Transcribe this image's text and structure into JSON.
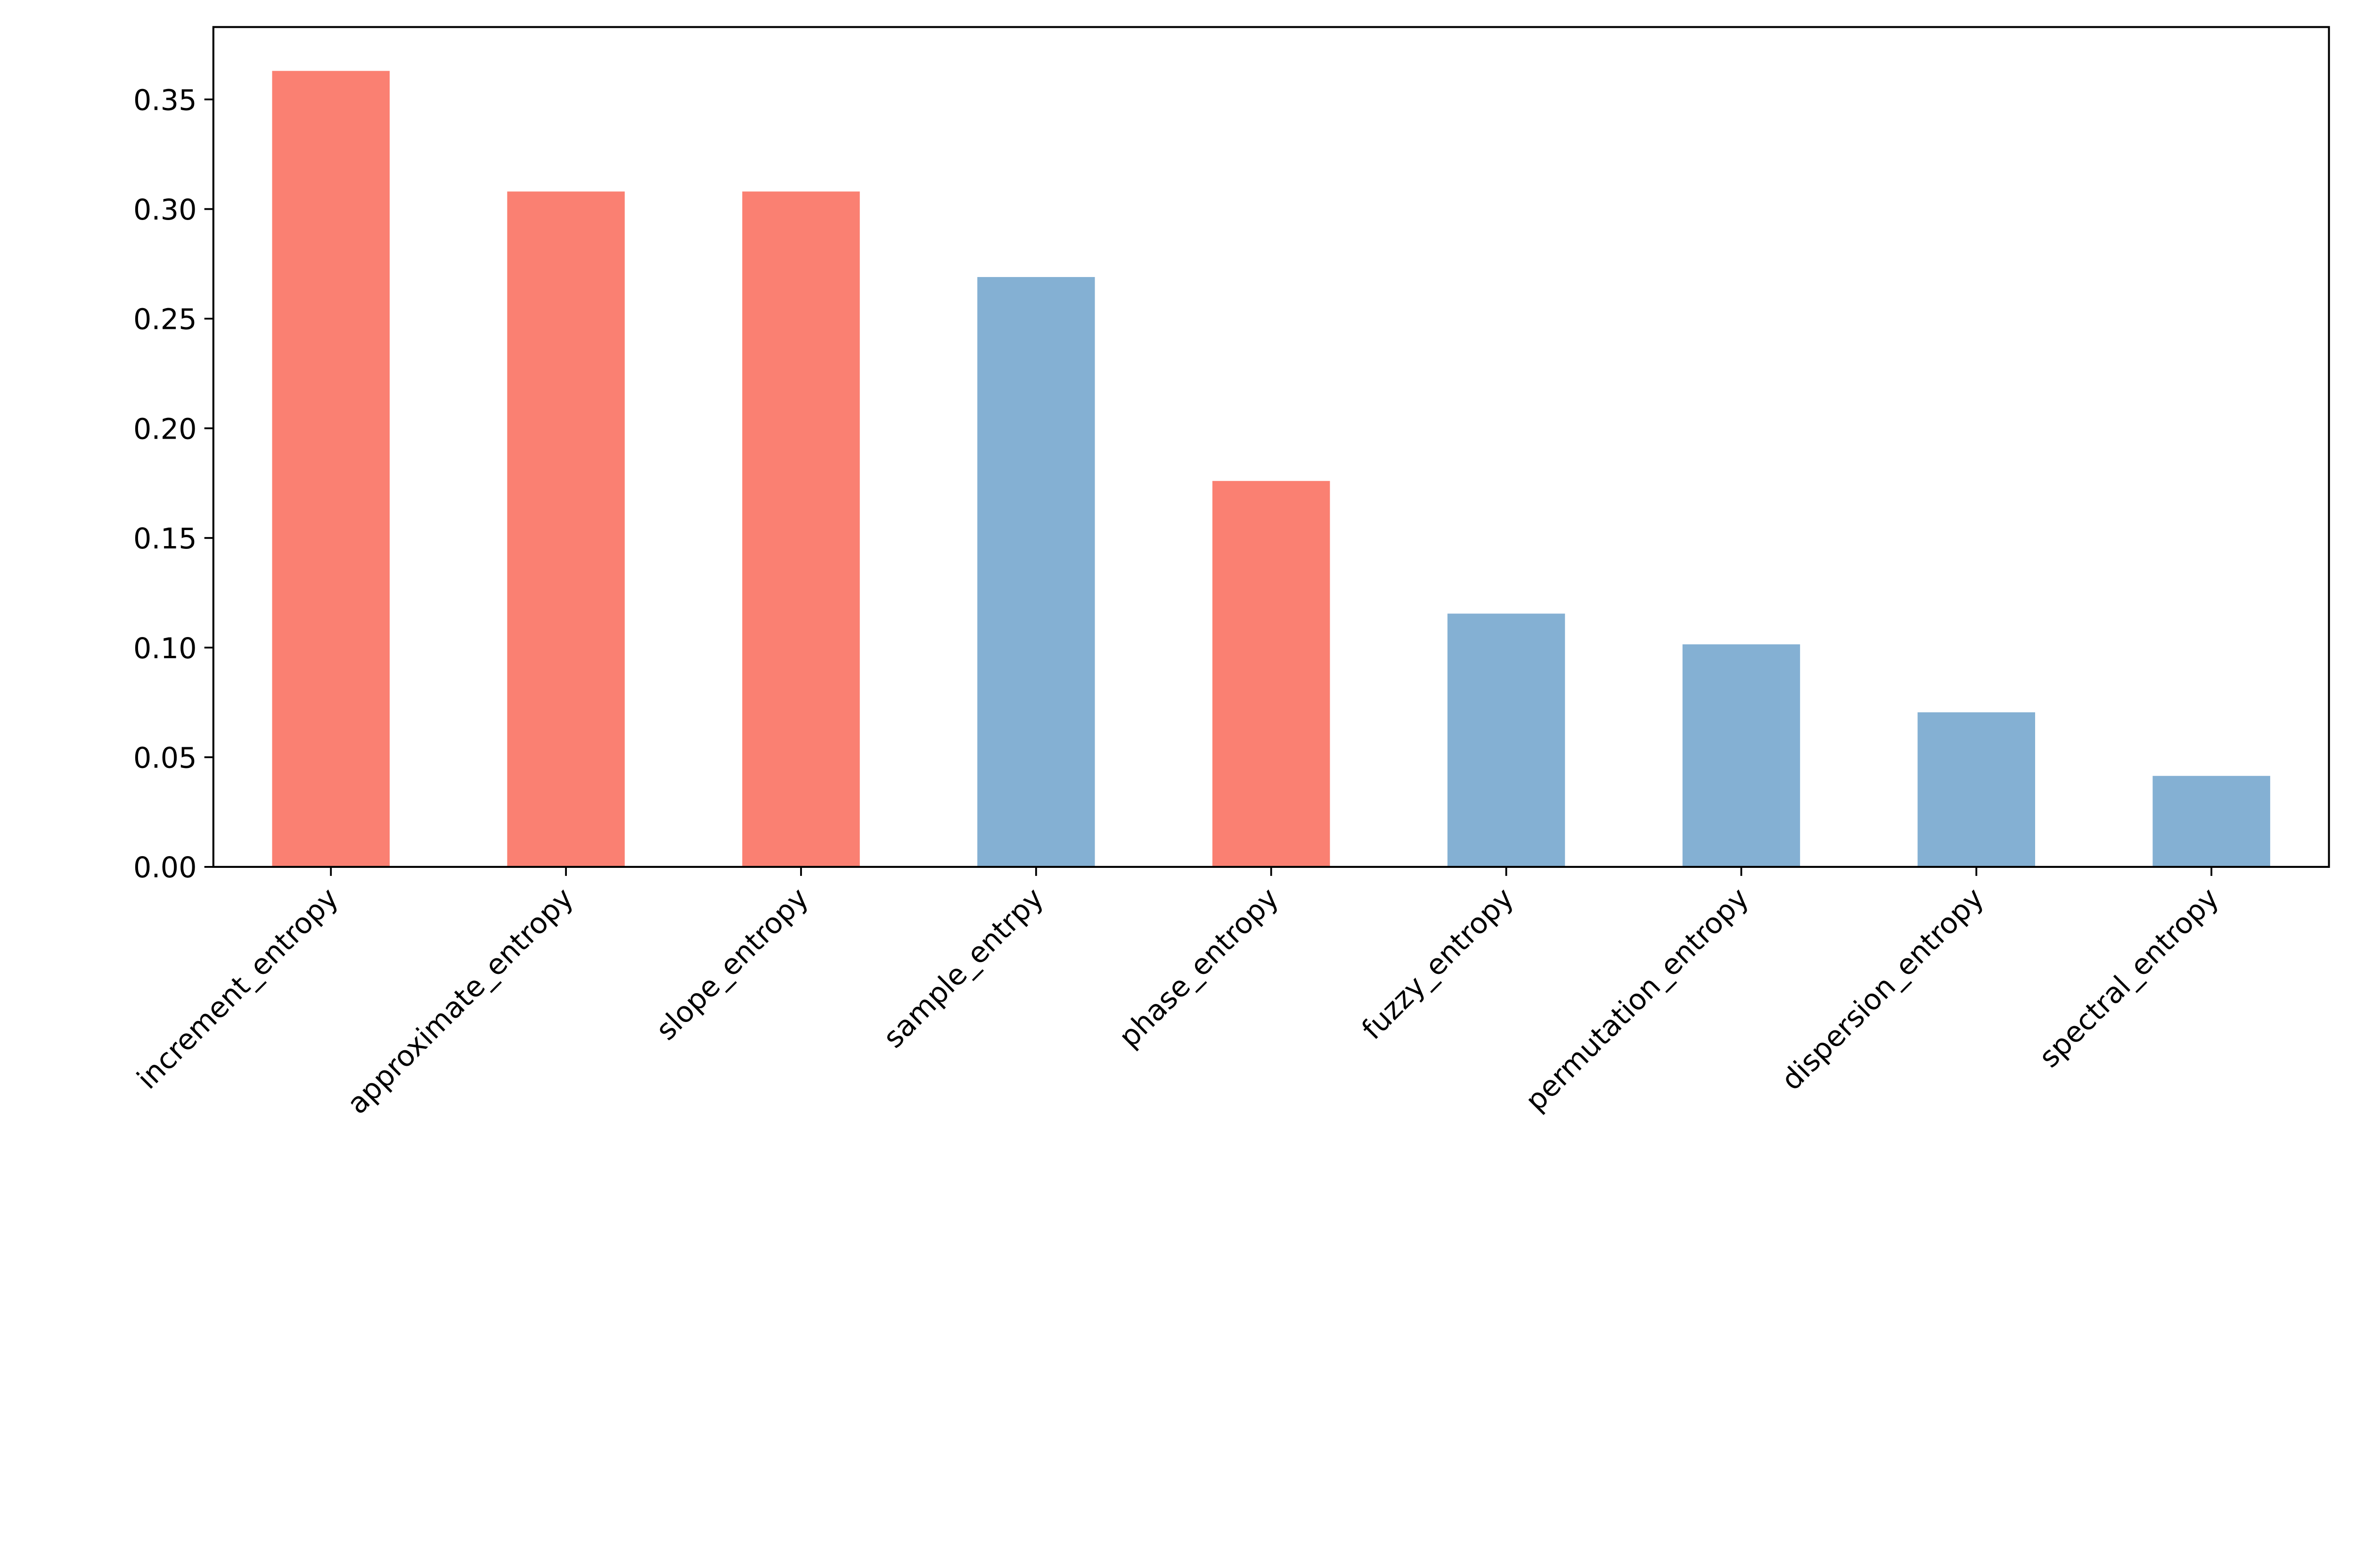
{
  "chart_data": {
    "type": "bar",
    "title": "",
    "xlabel": "",
    "ylabel": "",
    "categories": [
      "increment_entropy",
      "approximate_entropy",
      "slope_entropy",
      "sample_entrpy",
      "phase_entropy",
      "fuzzy_entropy",
      "permutation_entropy",
      "dispersion_entropy",
      "spectral_entropy"
    ],
    "values": [
      0.363,
      0.308,
      0.308,
      0.269,
      0.176,
      0.1155,
      0.1015,
      0.0705,
      0.0415
    ],
    "bar_colors": [
      "#FA8072",
      "#FA8072",
      "#FA8072",
      "#84B0D3",
      "#FA8072",
      "#84B0D3",
      "#84B0D3",
      "#84B0D3",
      "#84B0D3"
    ],
    "ylim": [
      0,
      0.383
    ],
    "yticks": [
      "0.00",
      "0.05",
      "0.10",
      "0.15",
      "0.20",
      "0.25",
      "0.30",
      "0.35"
    ],
    "grid": false,
    "xtick_rotation": 45
  }
}
